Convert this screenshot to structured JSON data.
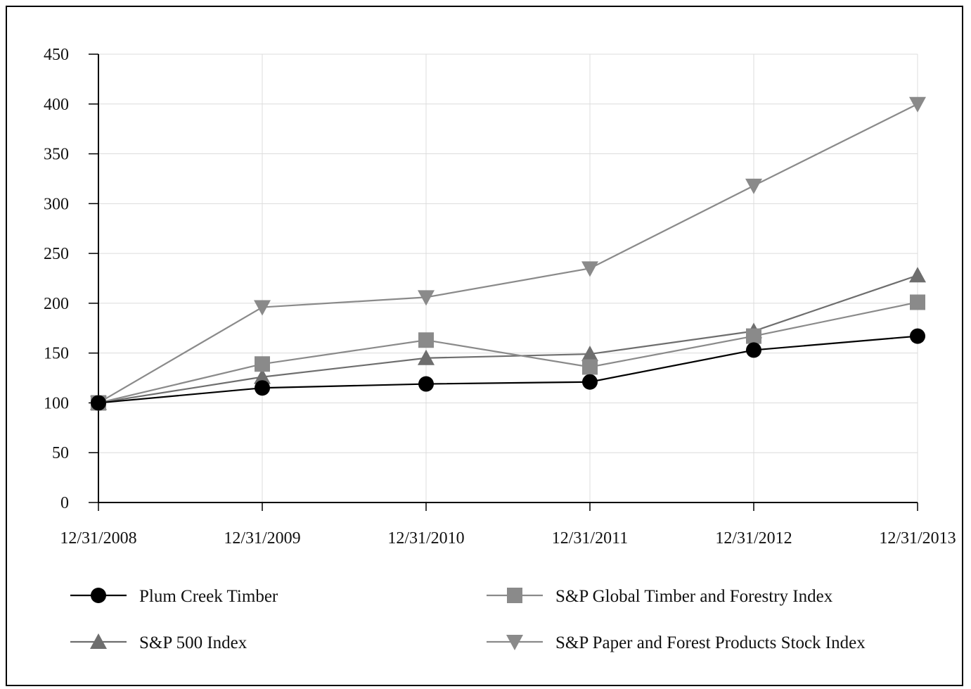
{
  "chart_data": {
    "type": "line",
    "title": "",
    "xlabel": "",
    "ylabel": "",
    "categories": [
      "12/31/2008",
      "12/31/2009",
      "12/31/2010",
      "12/31/2011",
      "12/31/2012",
      "12/31/2013"
    ],
    "ylim": [
      0,
      450
    ],
    "yticks": [
      "0",
      "50",
      "100",
      "150",
      "200",
      "250",
      "300",
      "350",
      "400",
      "450"
    ],
    "grid": true,
    "legend_position": "bottom",
    "series": [
      {
        "name": "Plum Creek Timber",
        "values": [
          100,
          115,
          119,
          121,
          153,
          167
        ],
        "color": "#000000",
        "marker": "circle-icon"
      },
      {
        "name": "S&P Global Timber and Forestry Index",
        "values": [
          100,
          139,
          163,
          136,
          167,
          201
        ],
        "color": "#8a8a8a",
        "marker": "square-icon"
      },
      {
        "name": "S&P 500 Index",
        "values": [
          100,
          126,
          145,
          149,
          172,
          228
        ],
        "color": "#6e6e6e",
        "marker": "triangle-up-icon"
      },
      {
        "name": "S&P Paper and Forest Products Stock Index",
        "values": [
          100,
          196,
          206,
          235,
          318,
          400
        ],
        "color": "#8a8a8a",
        "marker": "triangle-down-icon"
      }
    ]
  }
}
